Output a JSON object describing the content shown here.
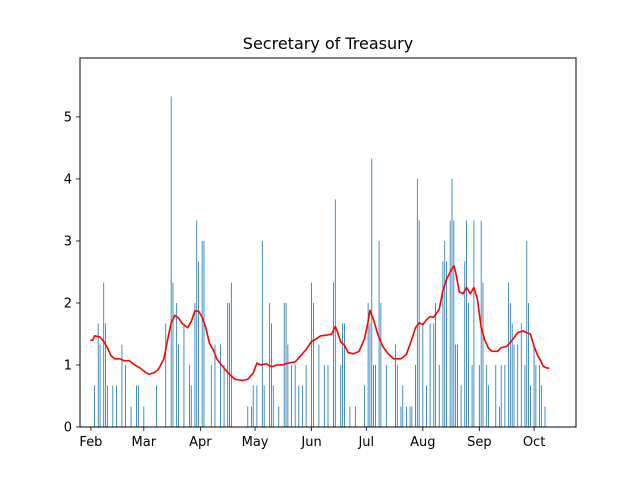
{
  "chart_data": {
    "type": "bar",
    "title": "Secretary of Treasury",
    "xlabel": "",
    "ylabel": "",
    "x_axis": {
      "type": "date",
      "range": [
        "2024-01-26",
        "2024-10-24"
      ],
      "tick_dates": [
        "2024-02-01",
        "2024-03-01",
        "2024-04-01",
        "2024-05-01",
        "2024-06-01",
        "2024-07-01",
        "2024-08-01",
        "2024-09-01",
        "2024-10-01"
      ],
      "tick_labels": [
        "Feb",
        "Mar",
        "Apr",
        "May",
        "Jun",
        "Jul",
        "Aug",
        "Sep",
        "Oct"
      ]
    },
    "y_axis": {
      "range": [
        0,
        5.95
      ],
      "ticks": [
        0,
        1,
        2,
        3,
        4,
        5
      ],
      "tick_labels": [
        "0",
        "1",
        "2",
        "3",
        "4",
        "5"
      ]
    },
    "grid": false,
    "bar_color": "#1f77b4",
    "line_color": "#ff0000",
    "series": [
      {
        "type": "bar",
        "points": [
          [
            "2024-02-03",
            0.67
          ],
          [
            "2024-02-05",
            1.67
          ],
          [
            "2024-02-06",
            1.33
          ],
          [
            "2024-02-08",
            2.33
          ],
          [
            "2024-02-09",
            1.67
          ],
          [
            "2024-02-10",
            0.67
          ],
          [
            "2024-02-13",
            0.67
          ],
          [
            "2024-02-15",
            0.67
          ],
          [
            "2024-02-18",
            1.33
          ],
          [
            "2024-02-20",
            1.0
          ],
          [
            "2024-02-23",
            0.33
          ],
          [
            "2024-02-26",
            0.67
          ],
          [
            "2024-02-27",
            0.67
          ],
          [
            "2024-03-01",
            0.33
          ],
          [
            "2024-03-08",
            0.67
          ],
          [
            "2024-03-13",
            1.67
          ],
          [
            "2024-03-16",
            5.33
          ],
          [
            "2024-03-17",
            2.33
          ],
          [
            "2024-03-19",
            2.0
          ],
          [
            "2024-03-20",
            1.33
          ],
          [
            "2024-03-23",
            1.67
          ],
          [
            "2024-03-26",
            1.0
          ],
          [
            "2024-03-27",
            0.67
          ],
          [
            "2024-03-29",
            2.0
          ],
          [
            "2024-03-30",
            3.33
          ],
          [
            "2024-03-31",
            2.67
          ],
          [
            "2024-04-02",
            3.0
          ],
          [
            "2024-04-03",
            3.0
          ],
          [
            "2024-04-07",
            1.0
          ],
          [
            "2024-04-09",
            1.33
          ],
          [
            "2024-04-12",
            1.33
          ],
          [
            "2024-04-14",
            1.0
          ],
          [
            "2024-04-16",
            2.0
          ],
          [
            "2024-04-17",
            2.0
          ],
          [
            "2024-04-18",
            2.33
          ],
          [
            "2024-04-27",
            0.33
          ],
          [
            "2024-04-29",
            0.33
          ],
          [
            "2024-04-30",
            0.67
          ],
          [
            "2024-05-02",
            0.67
          ],
          [
            "2024-05-05",
            3.0
          ],
          [
            "2024-05-06",
            0.67
          ],
          [
            "2024-05-09",
            2.0
          ],
          [
            "2024-05-10",
            1.67
          ],
          [
            "2024-05-11",
            0.67
          ],
          [
            "2024-05-14",
            0.33
          ],
          [
            "2024-05-17",
            2.0
          ],
          [
            "2024-05-18",
            2.0
          ],
          [
            "2024-05-19",
            1.33
          ],
          [
            "2024-05-21",
            1.0
          ],
          [
            "2024-05-23",
            1.0
          ],
          [
            "2024-05-25",
            0.67
          ],
          [
            "2024-05-27",
            0.67
          ],
          [
            "2024-05-29",
            1.0
          ],
          [
            "2024-06-01",
            2.33
          ],
          [
            "2024-06-02",
            2.0
          ],
          [
            "2024-06-05",
            1.33
          ],
          [
            "2024-06-08",
            1.0
          ],
          [
            "2024-06-10",
            1.0
          ],
          [
            "2024-06-13",
            2.33
          ],
          [
            "2024-06-14",
            3.67
          ],
          [
            "2024-06-17",
            1.0
          ],
          [
            "2024-06-18",
            1.67
          ],
          [
            "2024-06-19",
            1.67
          ],
          [
            "2024-06-22",
            0.33
          ],
          [
            "2024-06-25",
            0.33
          ],
          [
            "2024-06-30",
            0.67
          ],
          [
            "2024-07-02",
            2.0
          ],
          [
            "2024-07-03",
            1.67
          ],
          [
            "2024-07-04",
            4.33
          ],
          [
            "2024-07-05",
            1.0
          ],
          [
            "2024-07-06",
            1.0
          ],
          [
            "2024-07-08",
            3.0
          ],
          [
            "2024-07-09",
            2.0
          ],
          [
            "2024-07-12",
            1.0
          ],
          [
            "2024-07-17",
            1.33
          ],
          [
            "2024-07-18",
            1.0
          ],
          [
            "2024-07-20",
            0.33
          ],
          [
            "2024-07-21",
            0.67
          ],
          [
            "2024-07-23",
            0.33
          ],
          [
            "2024-07-25",
            0.33
          ],
          [
            "2024-07-26",
            0.33
          ],
          [
            "2024-07-28",
            1.0
          ],
          [
            "2024-07-29",
            4.0
          ],
          [
            "2024-07-30",
            3.33
          ],
          [
            "2024-08-01",
            1.67
          ],
          [
            "2024-08-03",
            0.67
          ],
          [
            "2024-08-05",
            1.67
          ],
          [
            "2024-08-07",
            1.67
          ],
          [
            "2024-08-08",
            2.0
          ],
          [
            "2024-08-10",
            1.0
          ],
          [
            "2024-08-12",
            2.67
          ],
          [
            "2024-08-13",
            3.0
          ],
          [
            "2024-08-14",
            2.67
          ],
          [
            "2024-08-16",
            3.33
          ],
          [
            "2024-08-17",
            4.0
          ],
          [
            "2024-08-18",
            3.33
          ],
          [
            "2024-08-19",
            1.33
          ],
          [
            "2024-08-20",
            1.33
          ],
          [
            "2024-08-22",
            0.67
          ],
          [
            "2024-08-24",
            2.67
          ],
          [
            "2024-08-25",
            3.33
          ],
          [
            "2024-08-26",
            2.0
          ],
          [
            "2024-08-28",
            1.0
          ],
          [
            "2024-08-29",
            3.33
          ],
          [
            "2024-09-01",
            1.0
          ],
          [
            "2024-09-02",
            3.33
          ],
          [
            "2024-09-03",
            2.33
          ],
          [
            "2024-09-05",
            1.0
          ],
          [
            "2024-09-06",
            0.67
          ],
          [
            "2024-09-10",
            1.0
          ],
          [
            "2024-09-12",
            0.33
          ],
          [
            "2024-09-13",
            1.0
          ],
          [
            "2024-09-15",
            1.0
          ],
          [
            "2024-09-17",
            2.33
          ],
          [
            "2024-09-18",
            2.0
          ],
          [
            "2024-09-19",
            1.67
          ],
          [
            "2024-09-20",
            1.33
          ],
          [
            "2024-09-22",
            1.33
          ],
          [
            "2024-09-24",
            1.67
          ],
          [
            "2024-09-26",
            1.0
          ],
          [
            "2024-09-27",
            3.0
          ],
          [
            "2024-09-28",
            2.0
          ],
          [
            "2024-09-29",
            0.67
          ],
          [
            "2024-10-01",
            1.33
          ],
          [
            "2024-10-02",
            1.0
          ],
          [
            "2024-10-04",
            1.0
          ],
          [
            "2024-10-05",
            0.67
          ],
          [
            "2024-10-07",
            0.33
          ]
        ]
      },
      {
        "type": "line",
        "points": [
          [
            "2024-02-01",
            1.4
          ],
          [
            "2024-02-02",
            1.4
          ],
          [
            "2024-02-03",
            1.47
          ],
          [
            "2024-02-06",
            1.45
          ],
          [
            "2024-02-08",
            1.38
          ],
          [
            "2024-02-10",
            1.28
          ],
          [
            "2024-02-12",
            1.15
          ],
          [
            "2024-02-14",
            1.1
          ],
          [
            "2024-02-17",
            1.1
          ],
          [
            "2024-02-19",
            1.07
          ],
          [
            "2024-02-22",
            1.07
          ],
          [
            "2024-02-25",
            1.0
          ],
          [
            "2024-02-28",
            0.95
          ],
          [
            "2024-03-02",
            0.88
          ],
          [
            "2024-03-04",
            0.85
          ],
          [
            "2024-03-07",
            0.88
          ],
          [
            "2024-03-09",
            0.93
          ],
          [
            "2024-03-12",
            1.1
          ],
          [
            "2024-03-14",
            1.4
          ],
          [
            "2024-03-16",
            1.68
          ],
          [
            "2024-03-18",
            1.8
          ],
          [
            "2024-03-20",
            1.76
          ],
          [
            "2024-03-22",
            1.67
          ],
          [
            "2024-03-25",
            1.6
          ],
          [
            "2024-03-27",
            1.7
          ],
          [
            "2024-03-29",
            1.87
          ],
          [
            "2024-03-31",
            1.87
          ],
          [
            "2024-04-02",
            1.77
          ],
          [
            "2024-04-04",
            1.6
          ],
          [
            "2024-04-06",
            1.35
          ],
          [
            "2024-04-08",
            1.25
          ],
          [
            "2024-04-10",
            1.1
          ],
          [
            "2024-04-12",
            1.02
          ],
          [
            "2024-04-14",
            0.95
          ],
          [
            "2024-04-16",
            0.88
          ],
          [
            "2024-04-18",
            0.82
          ],
          [
            "2024-04-20",
            0.77
          ],
          [
            "2024-04-24",
            0.75
          ],
          [
            "2024-04-27",
            0.77
          ],
          [
            "2024-04-30",
            0.87
          ],
          [
            "2024-05-02",
            1.03
          ],
          [
            "2024-05-04",
            1.0
          ],
          [
            "2024-05-07",
            1.02
          ],
          [
            "2024-05-10",
            0.97
          ],
          [
            "2024-05-13",
            1.0
          ],
          [
            "2024-05-16",
            1.0
          ],
          [
            "2024-05-19",
            1.03
          ],
          [
            "2024-05-23",
            1.05
          ],
          [
            "2024-05-26",
            1.15
          ],
          [
            "2024-05-29",
            1.25
          ],
          [
            "2024-06-01",
            1.38
          ],
          [
            "2024-06-04",
            1.43
          ],
          [
            "2024-06-06",
            1.47
          ],
          [
            "2024-06-09",
            1.48
          ],
          [
            "2024-06-12",
            1.5
          ],
          [
            "2024-06-14",
            1.62
          ],
          [
            "2024-06-15",
            1.55
          ],
          [
            "2024-06-17",
            1.37
          ],
          [
            "2024-06-19",
            1.32
          ],
          [
            "2024-06-21",
            1.2
          ],
          [
            "2024-06-24",
            1.18
          ],
          [
            "2024-06-27",
            1.22
          ],
          [
            "2024-06-30",
            1.42
          ],
          [
            "2024-07-02",
            1.7
          ],
          [
            "2024-07-03",
            1.88
          ],
          [
            "2024-07-05",
            1.73
          ],
          [
            "2024-07-07",
            1.52
          ],
          [
            "2024-07-10",
            1.3
          ],
          [
            "2024-07-13",
            1.18
          ],
          [
            "2024-07-16",
            1.1
          ],
          [
            "2024-07-20",
            1.1
          ],
          [
            "2024-07-23",
            1.17
          ],
          [
            "2024-07-26",
            1.42
          ],
          [
            "2024-07-28",
            1.6
          ],
          [
            "2024-07-30",
            1.68
          ],
          [
            "2024-08-01",
            1.65
          ],
          [
            "2024-08-03",
            1.73
          ],
          [
            "2024-08-05",
            1.78
          ],
          [
            "2024-08-07",
            1.77
          ],
          [
            "2024-08-10",
            1.9
          ],
          [
            "2024-08-12",
            2.2
          ],
          [
            "2024-08-14",
            2.38
          ],
          [
            "2024-08-16",
            2.5
          ],
          [
            "2024-08-18",
            2.6
          ],
          [
            "2024-08-19",
            2.5
          ],
          [
            "2024-08-21",
            2.18
          ],
          [
            "2024-08-23",
            2.15
          ],
          [
            "2024-08-25",
            2.25
          ],
          [
            "2024-08-27",
            2.15
          ],
          [
            "2024-08-29",
            2.25
          ],
          [
            "2024-08-31",
            2.05
          ],
          [
            "2024-09-02",
            1.6
          ],
          [
            "2024-09-04",
            1.4
          ],
          [
            "2024-09-06",
            1.27
          ],
          [
            "2024-09-08",
            1.22
          ],
          [
            "2024-09-11",
            1.22
          ],
          [
            "2024-09-13",
            1.28
          ],
          [
            "2024-09-16",
            1.3
          ],
          [
            "2024-09-19",
            1.4
          ],
          [
            "2024-09-22",
            1.52
          ],
          [
            "2024-09-25",
            1.55
          ],
          [
            "2024-09-27",
            1.52
          ],
          [
            "2024-09-29",
            1.5
          ],
          [
            "2024-10-01",
            1.3
          ],
          [
            "2024-10-03",
            1.15
          ],
          [
            "2024-10-05",
            1.05
          ],
          [
            "2024-10-06",
            0.98
          ],
          [
            "2024-10-08",
            0.95
          ],
          [
            "2024-10-09",
            0.95
          ]
        ]
      }
    ]
  }
}
